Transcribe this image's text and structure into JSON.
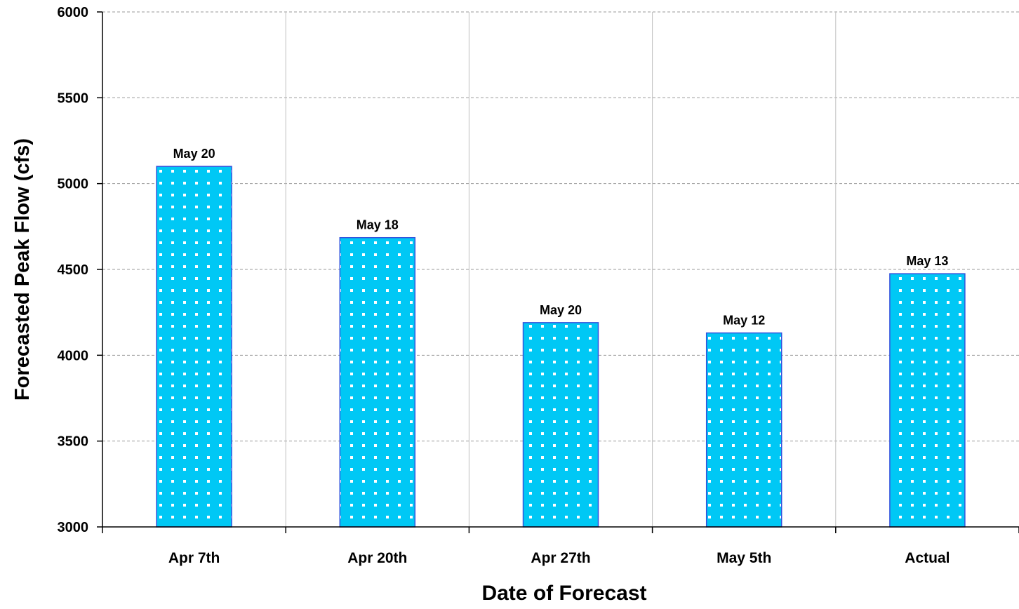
{
  "chart_data": {
    "type": "bar",
    "categories": [
      "Apr 7th",
      "Apr 20th",
      "Apr 27th",
      "May 5th",
      "Actual"
    ],
    "values": [
      5100,
      4685,
      4190,
      4130,
      4475
    ],
    "bar_labels": [
      "May 20",
      "May 18",
      "May 20",
      "May 12",
      "May 13"
    ],
    "xlabel": "Date of Forecast",
    "ylabel": "Forecasted Peak Flow (cfs)",
    "ylim": [
      3000,
      6000
    ],
    "yticks": [
      3000,
      3500,
      4000,
      4500,
      5000,
      5500,
      6000
    ],
    "grid": true,
    "legend": "none",
    "colors": {
      "bar_fill": "#00C8F5",
      "bar_stroke": "#3355DD",
      "bar_pattern_dot": "#ffffff",
      "grid_horizontal": "#999999",
      "grid_vertical": "#C0C0C0",
      "axis": "#000000"
    }
  }
}
